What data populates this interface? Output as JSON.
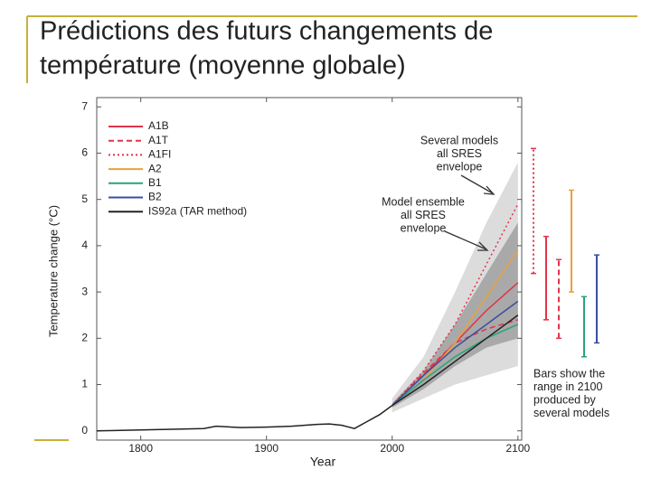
{
  "chart_data": {
    "type": "line",
    "title": "Prédictions des futurs changements de température (moyenne globale)",
    "title_lines": [
      "Prédictions des futurs changements de",
      "température (moyenne globale)"
    ],
    "ylabel": "Temperature change (°C)",
    "xlabel": "Year",
    "xlim": [
      1765,
      2103
    ],
    "ylim": [
      -0.2,
      7.2
    ],
    "xticks": [
      1800,
      1900,
      2000,
      2100
    ],
    "yticks": [
      0,
      1,
      2,
      3,
      4,
      5,
      6,
      7
    ],
    "envelopes": [
      {
        "color": "#dcdcdc",
        "x": [
          2000,
          2025,
          2050,
          2075,
          2100
        ],
        "lower": [
          0.4,
          0.7,
          1.0,
          1.2,
          1.4
        ],
        "upper": [
          0.7,
          1.6,
          3.0,
          4.5,
          5.8
        ]
      },
      {
        "color": "#a9a9a9",
        "x": [
          2000,
          2025,
          2050,
          2075,
          2100
        ],
        "lower": [
          0.5,
          0.9,
          1.4,
          1.8,
          2.0
        ],
        "upper": [
          0.6,
          1.3,
          2.3,
          3.4,
          4.5
        ]
      }
    ],
    "series": [
      {
        "color": "#222222",
        "dash": "solid",
        "x": [
          1765,
          1800,
          1850,
          1860,
          1880,
          1900,
          1920,
          1940,
          1950,
          1960,
          1970,
          1980,
          1990,
          2000
        ],
        "values": [
          0,
          0.02,
          0.05,
          0.1,
          0.07,
          0.08,
          0.1,
          0.14,
          0.15,
          0.12,
          0.05,
          0.2,
          0.35,
          0.55
        ]
      },
      {
        "name": "A1B",
        "color": "#e0344a",
        "dash": "solid",
        "x": [
          2000,
          2025,
          2050,
          2075,
          2100
        ],
        "values": [
          0.55,
          1.2,
          1.9,
          2.6,
          3.2
        ]
      },
      {
        "name": "A1T",
        "color": "#e0344a",
        "dash": "dashed",
        "x": [
          2000,
          2025,
          2050,
          2075,
          2100
        ],
        "values": [
          0.55,
          1.25,
          1.9,
          2.2,
          2.4
        ]
      },
      {
        "name": "A1FI",
        "color": "#e0344a",
        "dash": "dotted",
        "x": [
          2000,
          2025,
          2050,
          2075,
          2100
        ],
        "values": [
          0.55,
          1.3,
          2.3,
          3.6,
          4.9
        ]
      },
      {
        "name": "A2",
        "color": "#e8a33c",
        "dash": "solid",
        "x": [
          2000,
          2025,
          2050,
          2075,
          2100
        ],
        "values": [
          0.55,
          1.1,
          1.9,
          2.9,
          3.9
        ]
      },
      {
        "name": "B1",
        "color": "#2aa37a",
        "dash": "solid",
        "x": [
          2000,
          2025,
          2050,
          2075,
          2100
        ],
        "values": [
          0.55,
          1.1,
          1.6,
          2.0,
          2.3
        ]
      },
      {
        "name": "B2",
        "color": "#3a4fa0",
        "dash": "solid",
        "x": [
          2000,
          2025,
          2050,
          2075,
          2100
        ],
        "values": [
          0.55,
          1.2,
          1.8,
          2.3,
          2.8
        ]
      },
      {
        "name": "IS92a (TAR method)",
        "color": "#222222",
        "dash": "solid",
        "x": [
          2000,
          2025,
          2050,
          2075,
          2100
        ],
        "values": [
          0.55,
          1.0,
          1.5,
          2.0,
          2.5
        ]
      }
    ],
    "ranges": [
      {
        "color": "#e0344a",
        "dash": "dotted",
        "values": [
          3.4,
          6.1
        ]
      },
      {
        "color": "#e0344a",
        "dash": "solid",
        "values": [
          2.4,
          4.2
        ]
      },
      {
        "color": "#e0344a",
        "dash": "dashed",
        "values": [
          2.0,
          3.7
        ]
      },
      {
        "color": "#e8a33c",
        "dash": "solid",
        "values": [
          3.0,
          5.2
        ]
      },
      {
        "color": "#2aa37a",
        "dash": "solid",
        "values": [
          1.6,
          2.9
        ]
      },
      {
        "color": "#3a4fa0",
        "dash": "solid",
        "values": [
          1.9,
          3.8
        ]
      }
    ],
    "annotations": [
      {
        "lines": [
          "Several models",
          "all SRES",
          "envelope"
        ]
      },
      {
        "lines": [
          "Model ensemble",
          "all SRES",
          "envelope"
        ]
      },
      {
        "lines": [
          "Bars show the",
          "range in 2100",
          "produced by",
          "several models"
        ]
      }
    ]
  }
}
